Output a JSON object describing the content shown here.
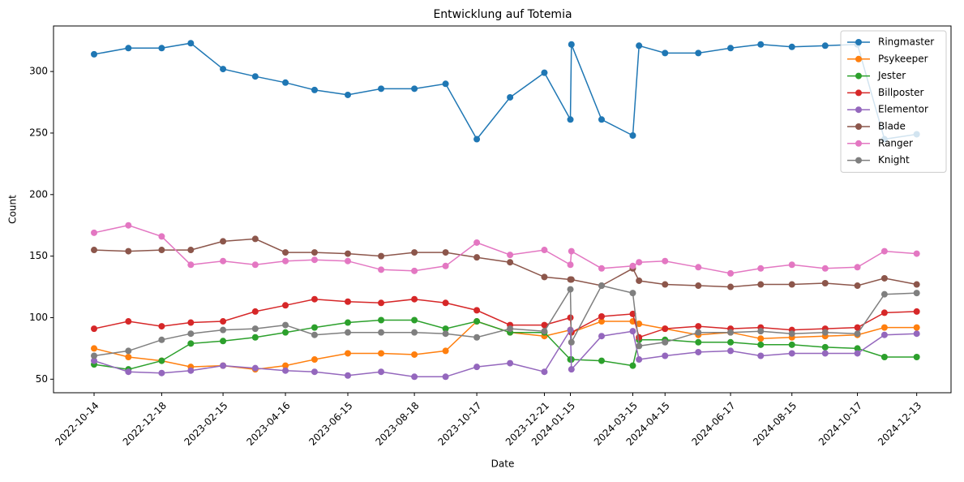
{
  "chart_data": {
    "type": "line",
    "title": "Entwicklung auf Totemia",
    "x_label": "Date",
    "y_label": "Count",
    "x": [
      "2022-10-14",
      "2022-11-16",
      "2022-12-18",
      "2023-01-15",
      "2023-02-15",
      "2023-03-18",
      "2023-04-16",
      "2023-05-14",
      "2023-06-15",
      "2023-07-17",
      "2023-08-18",
      "2023-09-17",
      "2023-10-17",
      "2023-11-18",
      "2023-12-21",
      "2024-01-15",
      "2024-01-16",
      "2024-02-14",
      "2024-03-15",
      "2024-03-21",
      "2024-04-15",
      "2024-05-17",
      "2024-06-17",
      "2024-07-16",
      "2024-08-15",
      "2024-09-16",
      "2024-10-17",
      "2024-11-12",
      "2024-12-13"
    ],
    "series": [
      {
        "name": "Ringmaster",
        "color": "#1f77b4",
        "values": [
          314,
          319,
          319,
          323,
          302,
          296,
          291,
          285,
          281,
          286,
          286,
          290,
          245,
          279,
          299,
          261,
          322,
          261,
          248,
          321,
          315,
          315,
          319,
          322,
          320,
          321,
          322,
          245,
          249
        ]
      },
      {
        "name": "Psykeeper",
        "color": "#ff7f0e",
        "values": [
          75,
          68,
          65,
          60,
          61,
          58,
          61,
          66,
          71,
          71,
          70,
          73,
          97,
          88,
          85,
          90,
          88,
          97,
          97,
          95,
          91,
          86,
          88,
          83,
          84,
          85,
          86,
          92,
          92
        ]
      },
      {
        "name": "Jester",
        "color": "#2ca02c",
        "values": [
          62,
          58,
          65,
          79,
          81,
          84,
          88,
          92,
          96,
          98,
          98,
          91,
          97,
          88,
          88,
          66,
          66,
          65,
          61,
          82,
          82,
          80,
          80,
          78,
          78,
          76,
          75,
          68,
          68
        ]
      },
      {
        "name": "Billposter",
        "color": "#d62728",
        "values": [
          91,
          97,
          93,
          96,
          97,
          105,
          110,
          115,
          113,
          112,
          115,
          112,
          106,
          94,
          94,
          100,
          88,
          101,
          103,
          84,
          91,
          93,
          91,
          92,
          90,
          91,
          92,
          104,
          105
        ]
      },
      {
        "name": "Elementor",
        "color": "#9467bd",
        "values": [
          65,
          56,
          55,
          57,
          61,
          59,
          57,
          56,
          53,
          56,
          52,
          52,
          60,
          63,
          56,
          90,
          58,
          85,
          89,
          66,
          69,
          72,
          73,
          69,
          71,
          71,
          71,
          86,
          87
        ]
      },
      {
        "name": "Blade",
        "color": "#8c564b",
        "values": [
          155,
          154,
          155,
          155,
          162,
          164,
          153,
          153,
          152,
          150,
          153,
          153,
          149,
          145,
          133,
          131,
          131,
          126,
          140,
          130,
          127,
          126,
          125,
          127,
          127,
          128,
          126,
          132,
          127
        ]
      },
      {
        "name": "Ranger",
        "color": "#e377c2",
        "values": [
          169,
          175,
          166,
          143,
          146,
          143,
          146,
          147,
          146,
          139,
          138,
          142,
          161,
          151,
          155,
          143,
          154,
          140,
          142,
          145,
          146,
          141,
          136,
          140,
          143,
          140,
          141,
          154,
          152
        ]
      },
      {
        "name": "Knight",
        "color": "#7f7f7f",
        "values": [
          69,
          73,
          82,
          87,
          90,
          91,
          94,
          86,
          88,
          88,
          88,
          87,
          84,
          91,
          89,
          123,
          80,
          126,
          120,
          77,
          80,
          88,
          88,
          89,
          87,
          88,
          87,
          119,
          120
        ]
      }
    ],
    "xlim": [
      "2022-09-05",
      "2025-01-15"
    ],
    "xticks": [
      "2022-10-14",
      "2022-12-18",
      "2023-02-15",
      "2023-04-16",
      "2023-06-15",
      "2023-08-18",
      "2023-10-17",
      "2023-12-21",
      "2024-01-15",
      "2024-03-15",
      "2024-04-15",
      "2024-06-17",
      "2024-08-15",
      "2024-10-17",
      "2024-12-13"
    ],
    "ylim": [
      39,
      337
    ],
    "yticks": [
      50,
      100,
      150,
      200,
      250,
      300
    ],
    "legend": "upper right"
  }
}
